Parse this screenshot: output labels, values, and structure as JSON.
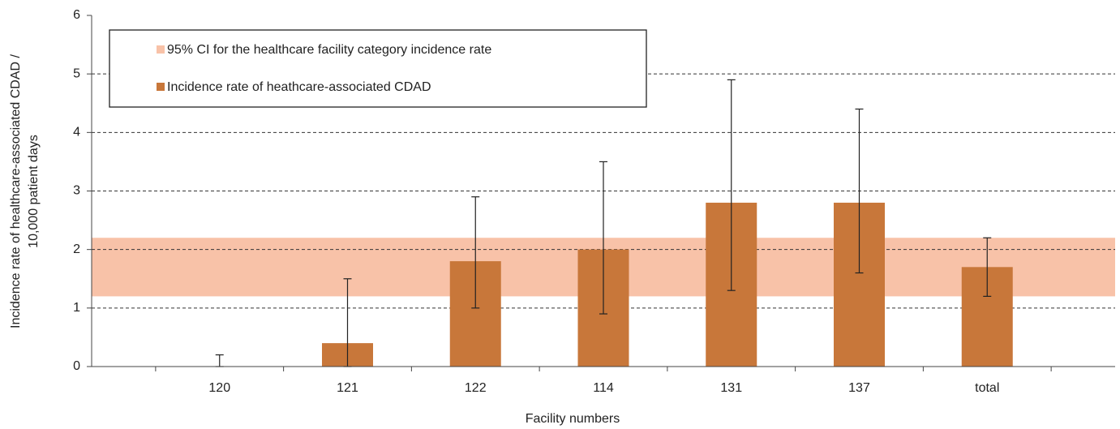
{
  "chart_data": {
    "type": "bar",
    "xlabel": "Facility numbers",
    "ylabel": [
      "Incidence rate of healthcare-associated CDAD /",
      "10,000 patient days"
    ],
    "categories": [
      "120",
      "121",
      "122",
      "114",
      "131",
      "137",
      "total"
    ],
    "series": [
      {
        "name": "Incidence rate of heathcare-associated CDAD",
        "color": "#c8773a",
        "values": [
          0,
          0.4,
          1.8,
          2.0,
          2.8,
          2.8,
          1.7
        ],
        "ci_low": [
          0,
          0,
          1.0,
          0.9,
          1.3,
          1.6,
          1.2
        ],
        "ci_high": [
          0.2,
          1.5,
          2.9,
          3.5,
          4.9,
          4.4,
          2.2
        ]
      }
    ],
    "band": {
      "name": "95% CI for the healthcare facility category incidence rate",
      "color": "#f8c2a8",
      "low": 1.2,
      "high": 2.2
    },
    "ylim": [
      0,
      6
    ],
    "yticks": [
      0,
      1,
      2,
      3,
      4,
      5,
      6
    ],
    "grid": true,
    "legend": "upper left"
  }
}
